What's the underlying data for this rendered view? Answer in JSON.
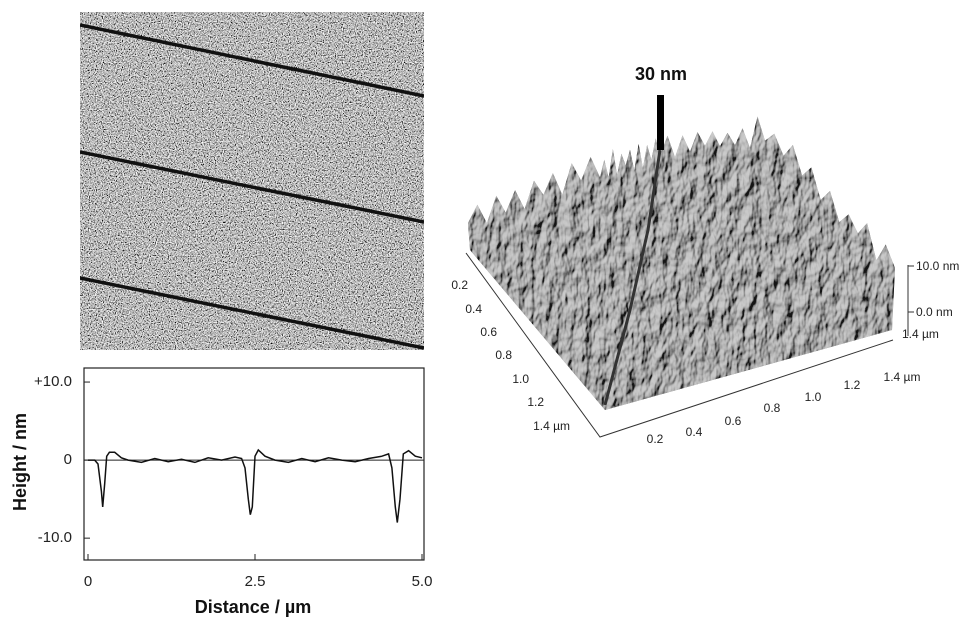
{
  "chart_data": {
    "type": "line",
    "xlabel": "Distance / µm",
    "ylabel": "Height / nm",
    "x": [
      0,
      0.1,
      0.15,
      0.2,
      0.22,
      0.25,
      0.28,
      0.32,
      0.4,
      0.5,
      0.6,
      0.8,
      1.0,
      1.2,
      1.4,
      1.6,
      1.8,
      2.0,
      2.2,
      2.3,
      2.35,
      2.4,
      2.43,
      2.46,
      2.5,
      2.55,
      2.65,
      2.8,
      3.0,
      3.2,
      3.4,
      3.6,
      3.8,
      4.0,
      4.2,
      4.4,
      4.5,
      4.55,
      4.6,
      4.63,
      4.67,
      4.72,
      4.8,
      4.9,
      5.0
    ],
    "values": [
      0,
      0,
      -0.5,
      -4,
      -6,
      -3,
      0.5,
      1,
      1,
      0.3,
      0,
      -0.3,
      0.2,
      -0.2,
      0.1,
      -0.3,
      0.3,
      0,
      0.4,
      0.2,
      -1,
      -5,
      -7,
      -6,
      0.5,
      1.3,
      0.5,
      0,
      -0.3,
      0.2,
      -0.2,
      0.3,
      0,
      -0.2,
      0.2,
      0.5,
      0.8,
      -1,
      -6,
      -8,
      -5,
      0.8,
      1.2,
      0.5,
      0.3
    ],
    "color": "#111111",
    "xlim": [
      -0.06,
      5.03
    ],
    "ylim": [
      -12.8,
      11.8
    ],
    "xticks": [
      0,
      2.5,
      {
        "value": 5,
        "label": "5.0"
      }
    ],
    "yticks": [
      {
        "value": 10,
        "label": "+10.0"
      },
      0,
      {
        "value": -10,
        "label": "-10.0"
      }
    ],
    "zero_line": true
  },
  "surface_3d": {
    "scale_label": "30 nm",
    "y_axis_labels": [
      "0.2",
      "0.4",
      "0.6",
      "0.8",
      "1.0",
      "1.2",
      "1.4 µm"
    ],
    "x_axis_labels": [
      "0.2",
      "0.4",
      "0.6",
      "0.8",
      "1.0",
      "1.2",
      "1.4 µm"
    ],
    "z_labels": [
      "10.0 nm",
      "0.0 nm"
    ],
    "depth_label": "1.4 µm"
  }
}
